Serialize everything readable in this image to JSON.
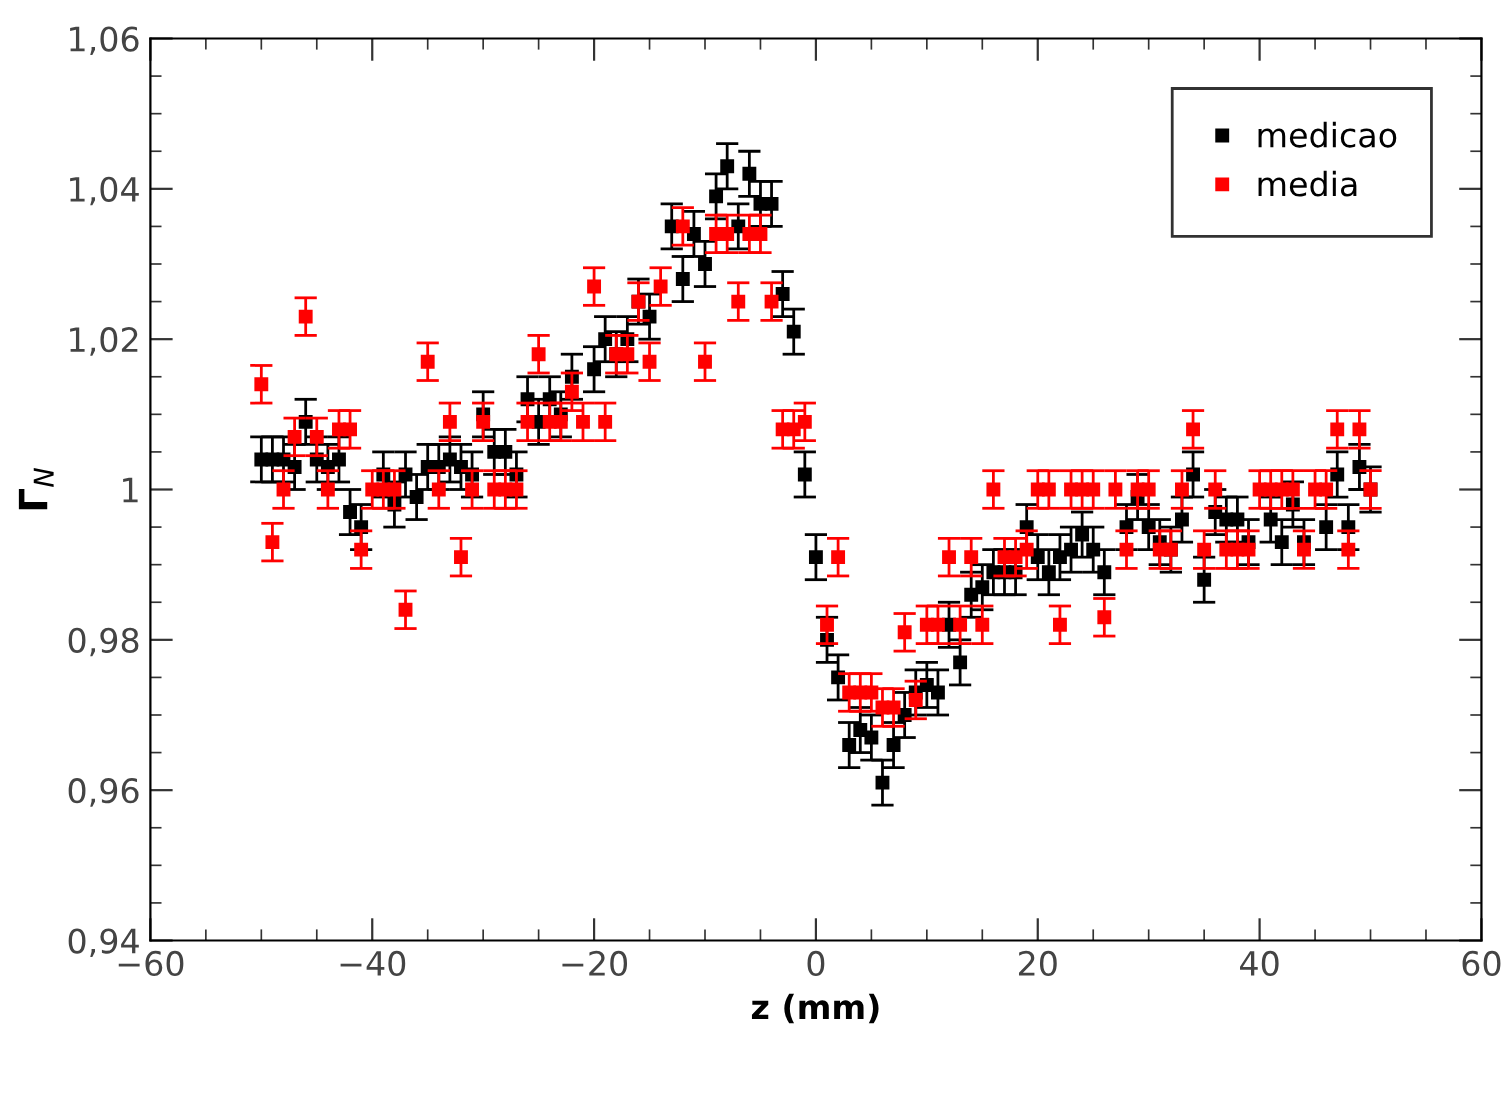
{
  "chart_data": {
    "type": "scatter",
    "xlabel": "z (mm)",
    "ylabel": "Γ$_{N}$",
    "xlim": [
      -60,
      60
    ],
    "xticks": [
      {
        "value": -60,
        "label": "−60"
      },
      {
        "value": -40,
        "label": "−40"
      },
      {
        "value": -20,
        "label": "−20"
      },
      0,
      20,
      40,
      60
    ],
    "ylim": [
      0.94,
      1.06
    ],
    "yticks": [
      {
        "value": 0.94,
        "label": "0,94"
      },
      {
        "value": 0.96,
        "label": "0,96"
      },
      {
        "value": 0.98,
        "label": "0,98"
      },
      1,
      {
        "value": 1.02,
        "label": "1,02"
      },
      {
        "value": 1.04,
        "label": "1,04"
      },
      {
        "value": 1.06,
        "label": "1,06"
      }
    ],
    "grid": false,
    "legend": "top right",
    "marker": "square",
    "series": [
      {
        "name": "medicao",
        "color": "#000000",
        "x": [
          -50,
          -49,
          -48,
          -47,
          -46,
          -45,
          -44,
          -43,
          -42,
          -41,
          -40,
          -39,
          -38,
          -37,
          -36,
          -35,
          -34,
          -33,
          -32,
          -31,
          -30,
          -29,
          -28,
          -27,
          -26,
          -25,
          -24,
          -23,
          -22,
          -20,
          -19,
          -18,
          -17,
          -16,
          -15,
          -13,
          -12,
          -11,
          -10,
          -9,
          -8,
          -7,
          -6,
          -5,
          -4,
          -3,
          -2,
          -1,
          0,
          1,
          2,
          3,
          4,
          5,
          6,
          7,
          8,
          9,
          10,
          11,
          12,
          13,
          14,
          15,
          16,
          17,
          18,
          19,
          20,
          21,
          22,
          23,
          24,
          25,
          26,
          28,
          29,
          30,
          31,
          32,
          33,
          34,
          35,
          36,
          37,
          38,
          39,
          41,
          42,
          43,
          44,
          46,
          47,
          48,
          49,
          50
        ],
        "values": [
          1.004,
          1.004,
          1.004,
          1.003,
          1.009,
          1.004,
          1.003,
          1.004,
          0.997,
          0.995,
          null,
          1.002,
          0.998,
          1.002,
          0.999,
          1.003,
          1.003,
          1.004,
          1.003,
          1.002,
          1.01,
          1.005,
          1.005,
          1.002,
          1.012,
          1.009,
          1.012,
          1.01,
          1.015,
          1.016,
          1.02,
          1.018,
          1.02,
          1.025,
          1.023,
          1.035,
          1.028,
          1.034,
          1.03,
          1.039,
          1.043,
          1.035,
          1.042,
          1.038,
          1.038,
          1.026,
          1.021,
          1.002,
          0.991,
          0.98,
          0.975,
          0.966,
          0.968,
          0.967,
          0.961,
          0.966,
          0.97,
          0.973,
          0.974,
          0.973,
          0.982,
          0.977,
          0.986,
          0.987,
          0.989,
          0.989,
          0.989,
          0.995,
          0.991,
          0.989,
          0.991,
          0.992,
          0.994,
          0.992,
          0.989,
          0.995,
          0.999,
          0.995,
          0.993,
          0.992,
          0.996,
          1.002,
          0.988,
          0.997,
          0.996,
          0.996,
          0.993,
          0.996,
          0.993,
          0.998,
          0.993,
          0.995,
          1.002,
          0.995,
          1.003,
          1.0
        ],
        "errors": [
          0.003,
          0.003,
          0.003,
          0.003,
          0.003,
          0.003,
          0.003,
          0.003,
          0.003,
          0.003,
          null,
          0.003,
          0.003,
          0.003,
          0.003,
          0.003,
          0.003,
          0.003,
          0.003,
          0.003,
          0.003,
          0.003,
          0.003,
          0.003,
          0.003,
          0.003,
          0.003,
          0.003,
          0.003,
          0.003,
          0.003,
          0.003,
          0.003,
          0.003,
          0.003,
          0.003,
          0.003,
          0.003,
          0.003,
          0.003,
          0.003,
          0.003,
          0.003,
          0.003,
          0.003,
          0.003,
          0.003,
          0.003,
          0.003,
          0.003,
          0.003,
          0.003,
          0.003,
          0.003,
          0.003,
          0.003,
          0.003,
          0.003,
          0.003,
          0.003,
          0.003,
          0.003,
          0.003,
          0.003,
          0.003,
          0.003,
          0.003,
          0.003,
          0.003,
          0.003,
          0.003,
          0.003,
          0.003,
          0.003,
          0.003,
          0.003,
          0.003,
          0.003,
          0.003,
          0.003,
          0.003,
          0.003,
          0.003,
          0.003,
          0.003,
          0.003,
          0.003,
          0.003,
          0.003,
          0.003,
          0.003,
          0.003,
          0.003,
          0.003,
          0.003,
          0.003
        ]
      },
      {
        "name": "media",
        "color": "#ff0000",
        "x": [
          -50,
          -49,
          -48,
          -47,
          -46,
          -45,
          -44,
          -43,
          -42,
          -41,
          -40,
          -39,
          -38,
          -37,
          -35,
          -34,
          -33,
          -32,
          -31,
          -30,
          -29,
          -28,
          -27,
          -26,
          -25,
          -24,
          -23,
          -22,
          -21,
          -20,
          -19,
          -18,
          -17,
          -16,
          -15,
          -14,
          -12,
          -10,
          -9,
          -8,
          -7,
          -6,
          -5,
          -4,
          -3,
          -2,
          -1,
          1,
          2,
          3,
          4,
          5,
          6,
          7,
          8,
          9,
          10,
          11,
          12,
          13,
          14,
          15,
          16,
          17,
          18,
          19,
          20,
          21,
          22,
          23,
          24,
          25,
          26,
          27,
          28,
          29,
          30,
          31,
          32,
          33,
          34,
          35,
          36,
          37,
          38,
          39,
          40,
          41,
          42,
          43,
          44,
          45,
          46,
          47,
          48,
          49,
          50
        ],
        "values": [
          1.014,
          0.993,
          1.0,
          1.007,
          1.023,
          1.007,
          1.0,
          1.008,
          1.008,
          0.992,
          1.0,
          1.0,
          1.0,
          0.984,
          1.017,
          1.0,
          1.009,
          0.991,
          1.0,
          1.009,
          1.0,
          1.0,
          1.0,
          1.009,
          1.018,
          1.009,
          1.009,
          1.013,
          1.009,
          1.027,
          1.009,
          1.018,
          1.018,
          1.025,
          1.017,
          1.027,
          1.035,
          1.017,
          1.034,
          1.034,
          1.025,
          1.034,
          1.034,
          1.025,
          1.008,
          1.008,
          1.009,
          0.982,
          0.991,
          0.973,
          0.973,
          0.973,
          0.971,
          0.971,
          0.981,
          0.972,
          0.982,
          0.982,
          0.991,
          0.982,
          0.991,
          0.982,
          1.0,
          0.991,
          0.991,
          0.992,
          1.0,
          1.0,
          0.982,
          1.0,
          1.0,
          1.0,
          0.983,
          1.0,
          0.992,
          1.0,
          1.0,
          0.992,
          0.992,
          1.0,
          1.008,
          0.992,
          1.0,
          0.992,
          0.992,
          0.992,
          1.0,
          1.0,
          1.0,
          1.0,
          0.992,
          1.0,
          1.0,
          1.008,
          0.992,
          1.008,
          1.0
        ],
        "errors": [
          0.0025,
          0.0025,
          0.0025,
          0.0025,
          0.0025,
          0.0025,
          0.0025,
          0.0025,
          0.0025,
          0.0025,
          0.0025,
          0.0025,
          0.0025,
          0.0025,
          0.0025,
          0.0025,
          0.0025,
          0.0025,
          0.0025,
          0.0025,
          0.0025,
          0.0025,
          0.0025,
          0.0025,
          0.0025,
          0.0025,
          0.0025,
          0.0025,
          0.0025,
          0.0025,
          0.0025,
          0.0025,
          0.0025,
          0.0025,
          0.0025,
          0.0025,
          0.0025,
          0.0025,
          0.0025,
          0.0025,
          0.0025,
          0.0025,
          0.0025,
          0.0025,
          0.0025,
          0.0025,
          0.0025,
          0.0025,
          0.0025,
          0.0025,
          0.0025,
          0.0025,
          0.0025,
          0.0025,
          0.0025,
          0.0025,
          0.0025,
          0.0025,
          0.0025,
          0.0025,
          0.0025,
          0.0025,
          0.0025,
          0.0025,
          0.0025,
          0.0025,
          0.0025,
          0.0025,
          0.0025,
          0.0025,
          0.0025,
          0.0025,
          0.0025,
          0.0025,
          0.0025,
          0.0025,
          0.0025,
          0.0025,
          0.0025,
          0.0025,
          0.0025,
          0.0025,
          0.0025,
          0.0025,
          0.0025,
          0.0025,
          0.0025,
          0.0025,
          0.0025,
          0.0025,
          0.0025,
          0.0025,
          0.0025,
          0.0025,
          0.0025,
          0.0025,
          0.0025
        ]
      }
    ]
  }
}
